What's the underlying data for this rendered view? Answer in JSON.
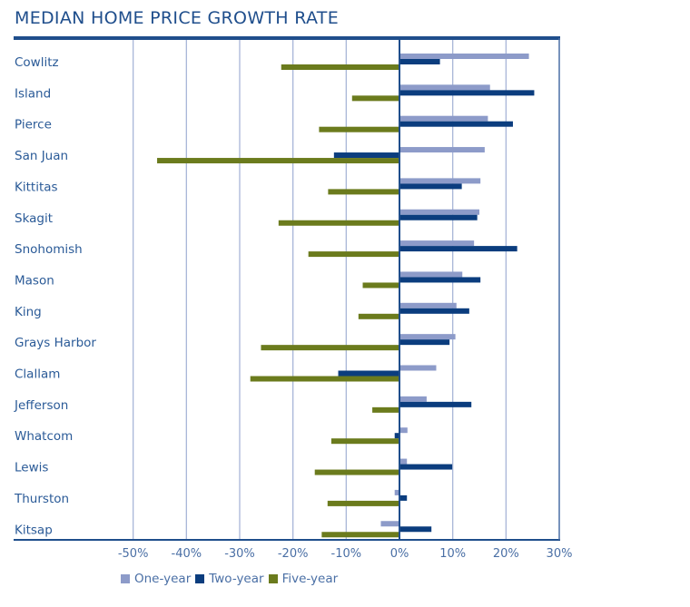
{
  "chart_data": {
    "type": "bar",
    "orientation": "horizontal",
    "title": "MEDIAN HOME PRICE GROWTH RATE",
    "xlabel": "",
    "ylabel": "",
    "xlim": [
      -55,
      30
    ],
    "x_ticks": [
      -50,
      -40,
      -30,
      -20,
      -10,
      0,
      10,
      20,
      30
    ],
    "x_tick_labels": [
      "-50%",
      "-40%",
      "-30%",
      "-20%",
      "-10%",
      "0%",
      "10%",
      "20%",
      "30%"
    ],
    "grid": true,
    "legend_position": "bottom-left",
    "categories": [
      "Cowlitz",
      "Island",
      "Pierce",
      "San Juan",
      "Kittitas",
      "Skagit",
      "Snohomish",
      "Mason",
      "King",
      "Grays Harbor",
      "Clallam",
      "Jefferson",
      "Whatcom",
      "Lewis",
      "Thurston",
      "Kitsap"
    ],
    "series": [
      {
        "name": "One-year",
        "color": "#8d9bc9",
        "values": [
          24.3,
          17.0,
          16.6,
          16.0,
          15.2,
          15.0,
          14.0,
          11.8,
          10.7,
          10.5,
          6.9,
          5.1,
          1.5,
          1.4,
          -0.9,
          -3.5
        ]
      },
      {
        "name": "Two-year",
        "color": "#0b3d7e",
        "values": [
          7.6,
          25.3,
          21.3,
          -12.3,
          11.7,
          14.6,
          22.1,
          15.2,
          13.1,
          9.4,
          -11.5,
          13.5,
          -0.9,
          9.9,
          1.4,
          6.0
        ]
      },
      {
        "name": "Five-year",
        "color": "#6b7b1d",
        "values": [
          -22.2,
          -8.9,
          -15.1,
          -45.5,
          -13.4,
          -22.7,
          -17.1,
          -6.9,
          -7.7,
          -26.0,
          -28.0,
          -5.1,
          -12.8,
          -15.9,
          -13.5,
          -14.6
        ]
      }
    ]
  },
  "colors": {
    "frame": "#1f4e8c",
    "grid": "#a8b6d8",
    "text": "#2a5a97"
  }
}
